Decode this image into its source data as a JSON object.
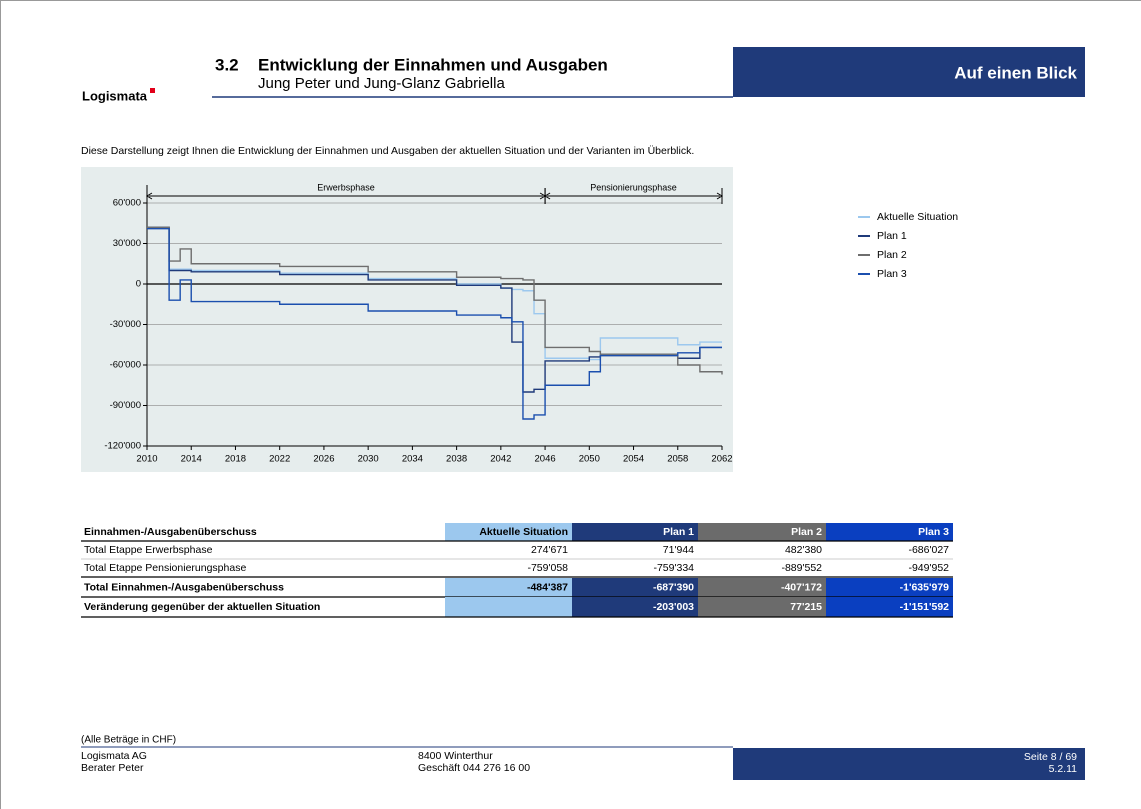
{
  "header": {
    "logo": "Logismata",
    "section": "3.2",
    "title": "Entwicklung der Einnahmen und Ausgaben",
    "subtitle": "Jung Peter und Jung-Glanz Gabriella",
    "tag": "Auf einen Blick"
  },
  "intro": "Diese Darstellung zeigt Ihnen die Entwicklung der Einnahmen und Ausgaben der aktuellen Situation und der Varianten im Überblick.",
  "chart_data": {
    "type": "line",
    "step": true,
    "x": [
      2010,
      2012,
      2013,
      2014,
      2022,
      2030,
      2038,
      2042,
      2043,
      2044,
      2045,
      2046,
      2050,
      2051,
      2058,
      2060,
      2062
    ],
    "series": [
      {
        "name": "Aktuelle Situation",
        "color": "#9cc8ee",
        "values": [
          42000,
          11000,
          11000,
          10000,
          8000,
          4000,
          0,
          -3000,
          -4000,
          -5000,
          -22000,
          -55000,
          -56000,
          -40000,
          -45000,
          -43000,
          -43000
        ]
      },
      {
        "name": "Plan 1",
        "color": "#1f3a7a",
        "values": [
          42000,
          10000,
          10000,
          9000,
          7000,
          3000,
          -1000,
          -3000,
          -43000,
          -80000,
          -78000,
          -57000,
          -54000,
          -53000,
          -55000,
          -47000,
          -47000
        ]
      },
      {
        "name": "Plan 2",
        "color": "#6e6e6e",
        "values": [
          42000,
          17000,
          26000,
          15000,
          13000,
          9000,
          5000,
          4000,
          4000,
          3000,
          -12000,
          -47000,
          -50000,
          -52000,
          -60000,
          -65000,
          -67000
        ]
      },
      {
        "name": "Plan 3",
        "color": "#1b4fae",
        "values": [
          41000,
          -12000,
          3000,
          -13000,
          -15000,
          -20000,
          -23000,
          -25000,
          -28000,
          -100000,
          -97000,
          -75000,
          -65000,
          -53000,
          -51000,
          -47000,
          -47000
        ]
      }
    ],
    "xlim": [
      2010,
      2062
    ],
    "xticks": [
      2010,
      2014,
      2018,
      2022,
      2026,
      2030,
      2034,
      2038,
      2042,
      2046,
      2050,
      2054,
      2058,
      2062
    ],
    "ylim": [
      -120000,
      60000
    ],
    "yticks": [
      {
        "value": 60000,
        "label": "60'000"
      },
      {
        "value": 30000,
        "label": "30'000"
      },
      0,
      {
        "value": -30000,
        "label": "-30'000"
      },
      {
        "value": -60000,
        "label": "-60'000"
      },
      {
        "value": -90000,
        "label": "-90'000"
      },
      {
        "value": -120000,
        "label": "-120'000"
      }
    ],
    "grid": true,
    "phases": [
      {
        "label": "Erwerbsphase",
        "start": 2010,
        "end": 2046
      },
      {
        "label": "Pensionierungsphase",
        "start": 2046,
        "end": 2062
      }
    ]
  },
  "table": {
    "columns": [
      "Einnahmen-/Ausgabenüberschuss",
      "Aktuelle Situation",
      "Plan 1",
      "Plan 2",
      "Plan 3"
    ],
    "rows": [
      [
        "Total Etappe Erwerbsphase",
        "274'671",
        "71'944",
        "482'380",
        "-686'027"
      ],
      [
        "Total Etappe Pensionierungsphase",
        "-759'058",
        "-759'334",
        "-889'552",
        "-949'952"
      ],
      [
        "Total Einnahmen-/Ausgabenüberschuss",
        "-484'387",
        "-687'390",
        "-407'172",
        "-1'635'979"
      ],
      [
        "Veränderung gegenüber der aktuellen Situation",
        null,
        "-203'003",
        "77'215",
        "-1'151'592"
      ]
    ]
  },
  "footer": {
    "note": "(Alle Beträge in CHF)",
    "company": "Logismata AG",
    "advisor": "Berater Peter",
    "city": "8400 Winterthur",
    "phone": "Geschäft 044 276 16 00",
    "page": "Seite 8 / 69",
    "version": "5.2.11"
  }
}
